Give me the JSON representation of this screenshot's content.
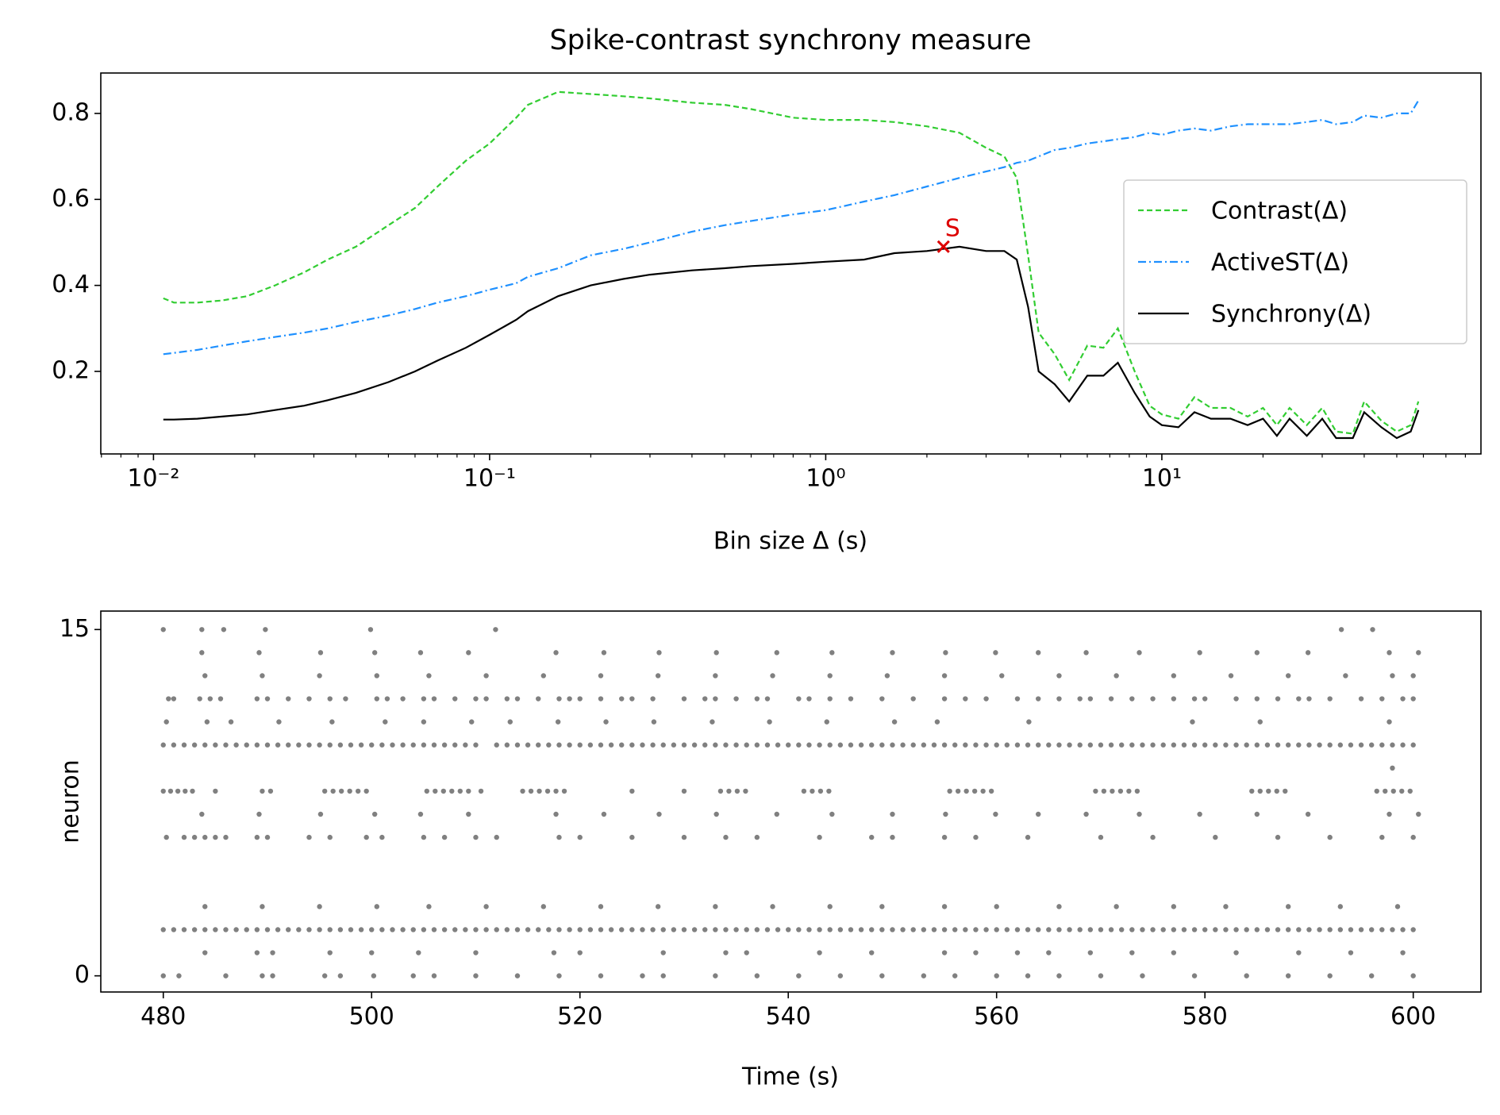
{
  "chart_data": [
    {
      "type": "line",
      "title": "Spike-contrast synchrony measure",
      "xlabel": "Bin size Δ (s)",
      "xlog": true,
      "xlim": [
        0.00697,
        89
      ],
      "ylim": [
        0.008,
        0.894
      ],
      "xticks": [
        {
          "value": 0.01,
          "label": "10⁻²"
        },
        {
          "value": 0.1,
          "label": "10⁻¹"
        },
        {
          "value": 1,
          "label": "10⁰"
        },
        {
          "value": 10,
          "label": "10¹"
        }
      ],
      "xminorticks": [
        0.007,
        0.008,
        0.009,
        0.02,
        0.03,
        0.04,
        0.05,
        0.06,
        0.07,
        0.08,
        0.09,
        0.2,
        0.3,
        0.4,
        0.5,
        0.6,
        0.7,
        0.8,
        0.9,
        2,
        3,
        4,
        5,
        6,
        7,
        8,
        9,
        20,
        30,
        40,
        50,
        60,
        70,
        80
      ],
      "yticks": [
        0.2,
        0.4,
        0.6,
        0.8
      ],
      "legend": "center right",
      "x": [
        0.0107,
        0.0115,
        0.0135,
        0.016,
        0.019,
        0.023,
        0.028,
        0.033,
        0.04,
        0.05,
        0.06,
        0.07,
        0.085,
        0.1,
        0.12,
        0.13,
        0.16,
        0.2,
        0.25,
        0.3,
        0.4,
        0.5,
        0.6,
        0.8,
        1.0,
        1.3,
        1.6,
        2.0,
        2.5,
        3.0,
        3.4,
        3.7,
        4.0,
        4.3,
        4.8,
        5.3,
        6.0,
        6.7,
        7.4,
        8.3,
        9.2,
        10,
        11.2,
        12.5,
        14,
        16,
        18,
        20,
        22,
        24,
        27,
        30,
        33,
        37,
        40,
        45,
        50,
        55,
        58
      ],
      "series": [
        {
          "name": "Contrast(Δ)",
          "color": "#32cd32",
          "dash": "7,4",
          "values": [
            0.37,
            0.36,
            0.36,
            0.365,
            0.375,
            0.4,
            0.43,
            0.46,
            0.49,
            0.54,
            0.58,
            0.63,
            0.69,
            0.73,
            0.79,
            0.82,
            0.85,
            0.845,
            0.84,
            0.835,
            0.825,
            0.82,
            0.81,
            0.79,
            0.785,
            0.785,
            0.78,
            0.77,
            0.755,
            0.72,
            0.7,
            0.65,
            0.47,
            0.29,
            0.24,
            0.18,
            0.26,
            0.255,
            0.3,
            0.2,
            0.12,
            0.1,
            0.09,
            0.14,
            0.115,
            0.115,
            0.095,
            0.115,
            0.075,
            0.115,
            0.075,
            0.115,
            0.06,
            0.055,
            0.13,
            0.085,
            0.06,
            0.075,
            0.13
          ]
        },
        {
          "name": "ActiveST(Δ)",
          "color": "#1e90ff",
          "dash": "10,4,2,4",
          "values": [
            0.24,
            0.243,
            0.25,
            0.26,
            0.27,
            0.28,
            0.29,
            0.3,
            0.315,
            0.33,
            0.345,
            0.36,
            0.375,
            0.39,
            0.405,
            0.42,
            0.44,
            0.47,
            0.485,
            0.5,
            0.525,
            0.54,
            0.55,
            0.565,
            0.575,
            0.595,
            0.61,
            0.63,
            0.65,
            0.665,
            0.675,
            0.685,
            0.69,
            0.7,
            0.715,
            0.72,
            0.73,
            0.735,
            0.74,
            0.745,
            0.755,
            0.75,
            0.76,
            0.765,
            0.76,
            0.77,
            0.775,
            0.775,
            0.775,
            0.775,
            0.78,
            0.785,
            0.775,
            0.78,
            0.795,
            0.79,
            0.8,
            0.8,
            0.83
          ]
        },
        {
          "name": "Synchrony(Δ)",
          "color": "#000000",
          "dash": "none",
          "values": [
            0.088,
            0.088,
            0.09,
            0.095,
            0.1,
            0.11,
            0.12,
            0.133,
            0.15,
            0.175,
            0.2,
            0.225,
            0.255,
            0.285,
            0.32,
            0.34,
            0.375,
            0.4,
            0.415,
            0.425,
            0.435,
            0.44,
            0.445,
            0.45,
            0.455,
            0.46,
            0.475,
            0.48,
            0.49,
            0.48,
            0.48,
            0.46,
            0.35,
            0.2,
            0.17,
            0.13,
            0.19,
            0.19,
            0.22,
            0.15,
            0.095,
            0.075,
            0.07,
            0.105,
            0.09,
            0.09,
            0.075,
            0.09,
            0.05,
            0.09,
            0.05,
            0.09,
            0.045,
            0.045,
            0.105,
            0.07,
            0.045,
            0.06,
            0.11
          ]
        }
      ],
      "annotations": [
        {
          "text": "S",
          "x": 2.24,
          "y": 0.49,
          "color": "#dd0000"
        }
      ]
    },
    {
      "type": "scatter",
      "xlabel": "Time (s)",
      "ylabel": "neuron",
      "color": "#808080",
      "xlim": [
        474,
        606.5
      ],
      "ylim": [
        -0.7,
        15.8
      ],
      "xticks": [
        480,
        500,
        520,
        540,
        560,
        580,
        600
      ],
      "yticks": [
        0,
        15
      ],
      "trains": [
        {
          "neuron": 0,
          "times": [
            480,
            481.5,
            486,
            489.5,
            490.5,
            495.5,
            497,
            500.2,
            504,
            506,
            510,
            514,
            518,
            522,
            526,
            528,
            533,
            537,
            541,
            545,
            549,
            553,
            556,
            560,
            563,
            566,
            570,
            574,
            579,
            584,
            588,
            592,
            596,
            600
          ]
        },
        {
          "neuron": 1,
          "times": [
            484,
            489,
            490.5,
            496,
            500,
            504.5,
            510,
            517.5,
            520,
            528,
            534,
            536,
            543,
            548,
            555,
            558,
            562,
            565,
            569,
            573,
            577,
            583,
            589,
            594,
            599
          ]
        },
        {
          "neuron": 2,
          "times": [
            480,
            481,
            482,
            483,
            484,
            485,
            486,
            487,
            488,
            489,
            490,
            491,
            492,
            493,
            494,
            495,
            496,
            497,
            498,
            499,
            500,
            501,
            502,
            503,
            504,
            505,
            506,
            507,
            508,
            509,
            510,
            511,
            512,
            513,
            514,
            515,
            516,
            517,
            518,
            519,
            520,
            521,
            522,
            523,
            524,
            525,
            526,
            527,
            528,
            529,
            530,
            531,
            532,
            533,
            534,
            535,
            536,
            537,
            538,
            539,
            540,
            541,
            542,
            543,
            544,
            545,
            546,
            547,
            548,
            549,
            550,
            551,
            552,
            553,
            554,
            555,
            556,
            557,
            558,
            559,
            560,
            561,
            562,
            563,
            564,
            565,
            566,
            567,
            568,
            569,
            570,
            571,
            572,
            573,
            574,
            575,
            576,
            577,
            578,
            579,
            580,
            581,
            582,
            583,
            584,
            585,
            586,
            587,
            588,
            589,
            590,
            591,
            592,
            593,
            594,
            595,
            596,
            597,
            598,
            599,
            600
          ]
        },
        {
          "neuron": 3,
          "times": [
            484,
            489.5,
            495,
            500.5,
            505.5,
            511,
            516.5,
            522,
            527.5,
            533,
            538.5,
            544,
            549,
            555,
            560,
            566,
            571.5,
            577,
            582,
            588,
            593,
            598.5
          ]
        },
        {
          "neuron": 6,
          "times": [
            480.3,
            482,
            483,
            484,
            485,
            486,
            489,
            490,
            494,
            496,
            499.5,
            501,
            505,
            507,
            510,
            512,
            518,
            520,
            525,
            530,
            534,
            537,
            543,
            548,
            550,
            555,
            558,
            563,
            570,
            575,
            581,
            587,
            592,
            597,
            600
          ]
        },
        {
          "neuron": 7,
          "times": [
            483.7,
            489.2,
            495.1,
            500.3,
            504.7,
            509.3,
            517.7,
            522.3,
            527.6,
            533.1,
            538.9,
            544.2,
            550,
            555.1,
            559.9,
            564,
            568.6,
            573.7,
            579.5,
            585,
            589.9,
            597.7,
            600.5
          ]
        },
        {
          "neuron": 8,
          "times": [
            480,
            480.7,
            481.4,
            482.1,
            482.8,
            485,
            489.5,
            490.3,
            495.5,
            496.3,
            497.1,
            497.9,
            498.7,
            499.5,
            505.3,
            506.1,
            506.9,
            507.7,
            508.5,
            509.3,
            510.5,
            514.5,
            515.3,
            516.1,
            516.9,
            517.7,
            518.5,
            525,
            530,
            533.5,
            534.3,
            535.1,
            535.9,
            541.5,
            542.3,
            543.1,
            543.9,
            555.5,
            556.3,
            557.1,
            557.9,
            558.7,
            559.5,
            569.5,
            570.3,
            571.1,
            571.9,
            572.7,
            573.5,
            584.5,
            585.3,
            586.1,
            586.9,
            587.7,
            596.5,
            597.3,
            598.1,
            598.9,
            599.7
          ]
        },
        {
          "neuron": 9,
          "times": [
            598
          ]
        },
        {
          "neuron": 10,
          "times": [
            480,
            481,
            482,
            483,
            484,
            485,
            486,
            487,
            488,
            489,
            490,
            491,
            492,
            493,
            494,
            495,
            496,
            497,
            498,
            499,
            500,
            501,
            502,
            503,
            504,
            505,
            506,
            507,
            508,
            509,
            510,
            512,
            513,
            514,
            515,
            516,
            517,
            518,
            519,
            520,
            521,
            522,
            523,
            524,
            525,
            526,
            527,
            528,
            529,
            530,
            531,
            532,
            533,
            534,
            535,
            536,
            537,
            538,
            539,
            540,
            541,
            542,
            543,
            544,
            545,
            546,
            547,
            548,
            549,
            550,
            551,
            552,
            553,
            554,
            555,
            556,
            557,
            558,
            559,
            560,
            561,
            562,
            563,
            564,
            565,
            566,
            567,
            568,
            569,
            570,
            571,
            572,
            573,
            574,
            575,
            576,
            577,
            578,
            579,
            580,
            581,
            582,
            583,
            584,
            585,
            586,
            587,
            588,
            589,
            590,
            591,
            592,
            593,
            594,
            595,
            596,
            597,
            598,
            599,
            600
          ]
        },
        {
          "neuron": 11,
          "times": [
            480.3,
            484.2,
            486.5,
            491.1,
            496.2,
            501.3,
            505,
            509.6,
            513.3,
            517.9,
            522.5,
            527.1,
            532.7,
            538.2,
            543.7,
            550.2,
            554.3,
            563.1,
            578.8,
            585.3,
            597.7
          ]
        },
        {
          "neuron": 12,
          "times": [
            480.5,
            481,
            483.5,
            484.5,
            485.5,
            489,
            490,
            492,
            494,
            496,
            497.5,
            500.5,
            501.5,
            503,
            505,
            506,
            508,
            510,
            511,
            513,
            514,
            516,
            518,
            519,
            520,
            522,
            524,
            525,
            527,
            530,
            532,
            533,
            535,
            537,
            538,
            541,
            542,
            544,
            546,
            549,
            552,
            555,
            557,
            559,
            562,
            564,
            566,
            568,
            569,
            571,
            573,
            575,
            577,
            579,
            580,
            583,
            585,
            587,
            589,
            590,
            592,
            595,
            597,
            599,
            600
          ]
        },
        {
          "neuron": 13,
          "times": [
            484,
            489.5,
            495,
            500.5,
            505.5,
            511,
            516.5,
            522,
            527.5,
            533,
            538.5,
            544,
            549.5,
            555,
            560.5,
            566,
            571.5,
            577,
            582.5,
            588,
            593.5,
            598,
            600
          ]
        },
        {
          "neuron": 14,
          "times": [
            483.7,
            489.2,
            495.1,
            500.3,
            504.7,
            509.3,
            517.7,
            522.3,
            527.6,
            533.1,
            538.9,
            544.2,
            550,
            555.1,
            559.9,
            564,
            568.6,
            573.7,
            579.5,
            585,
            589.9,
            597.7,
            600.5
          ]
        },
        {
          "neuron": 15,
          "times": [
            480,
            483.7,
            485.8,
            489.8,
            499.9,
            511.9,
            593.1,
            596.1
          ]
        }
      ]
    }
  ]
}
